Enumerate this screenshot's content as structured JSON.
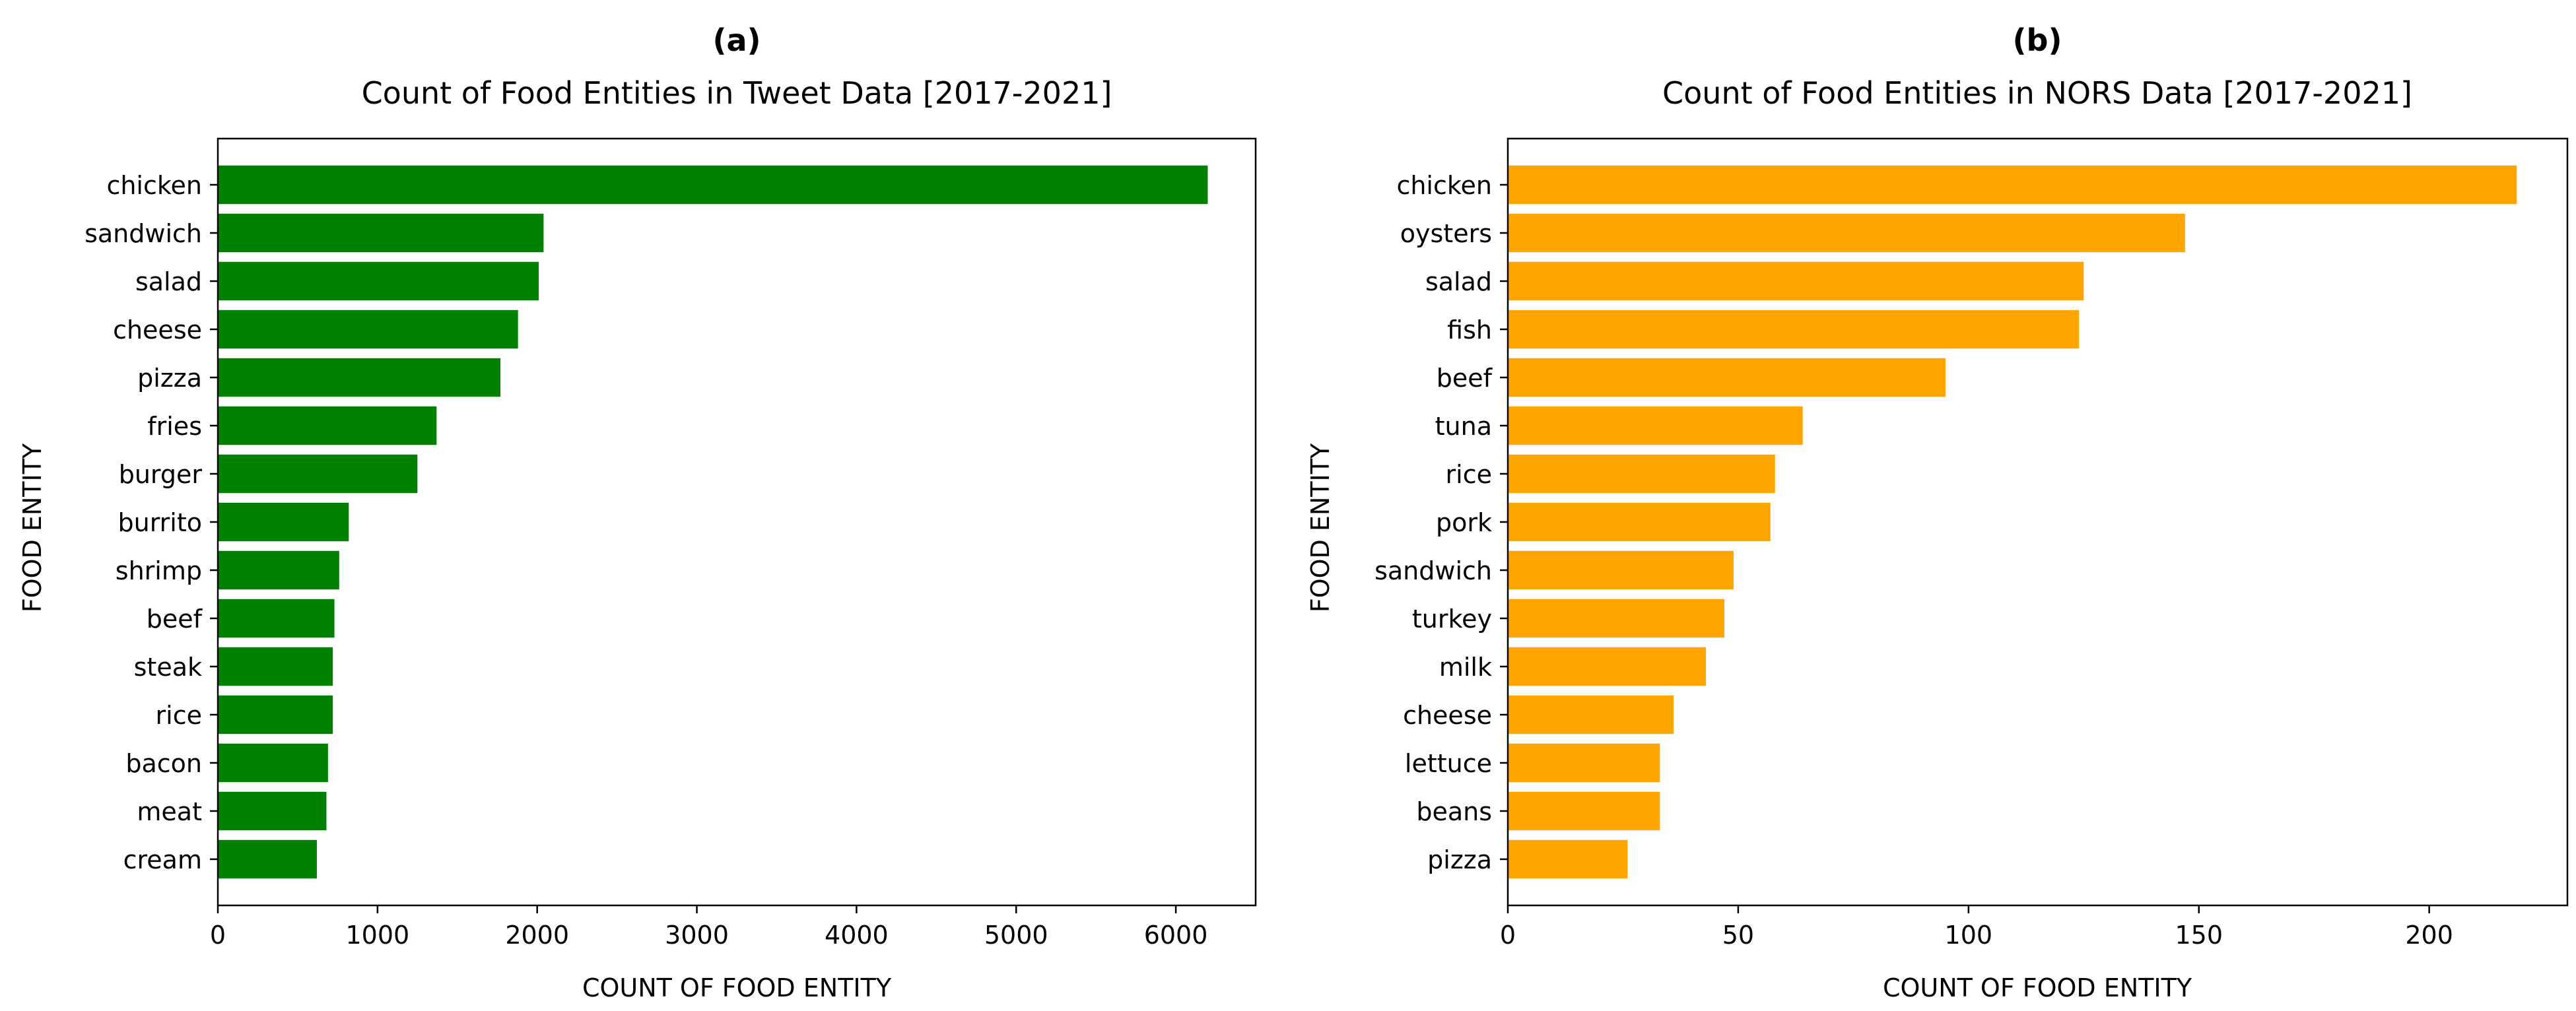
{
  "chart_data": [
    {
      "type": "bar",
      "orientation": "horizontal",
      "panel_label": "(a)",
      "title": "Count of Food Entities in Tweet Data [2017-2021]",
      "xlabel": "COUNT OF FOOD ENTITY",
      "ylabel": "FOOD ENTITY",
      "color": "#008000",
      "xlim": [
        0,
        6500
      ],
      "xticks": [
        0,
        1000,
        2000,
        3000,
        4000,
        5000,
        6000
      ],
      "categories": [
        "chicken",
        "sandwich",
        "salad",
        "cheese",
        "pizza",
        "fries",
        "burger",
        "burrito",
        "shrimp",
        "beef",
        "steak",
        "rice",
        "bacon",
        "meat",
        "cream"
      ],
      "values": [
        6200,
        2040,
        2010,
        1880,
        1770,
        1370,
        1250,
        820,
        760,
        730,
        720,
        720,
        690,
        680,
        620
      ],
      "grid": false,
      "legend": false
    },
    {
      "type": "bar",
      "orientation": "horizontal",
      "panel_label": "(b)",
      "title": "Count of Food Entities in NORS Data [2017-2021]",
      "xlabel": "COUNT OF FOOD ENTITY",
      "ylabel": "FOOD ENTITY",
      "color": "#FFA500",
      "xlim": [
        0,
        230
      ],
      "xticks": [
        0,
        50,
        100,
        150,
        200
      ],
      "categories": [
        "chicken",
        "oysters",
        "salad",
        "fish",
        "beef",
        "tuna",
        "rice",
        "pork",
        "sandwich",
        "turkey",
        "milk",
        "cheese",
        "lettuce",
        "beans",
        "pizza"
      ],
      "values": [
        219,
        147,
        125,
        124,
        95,
        64,
        58,
        57,
        49,
        47,
        43,
        36,
        33,
        33,
        26
      ],
      "grid": false,
      "legend": false
    }
  ]
}
